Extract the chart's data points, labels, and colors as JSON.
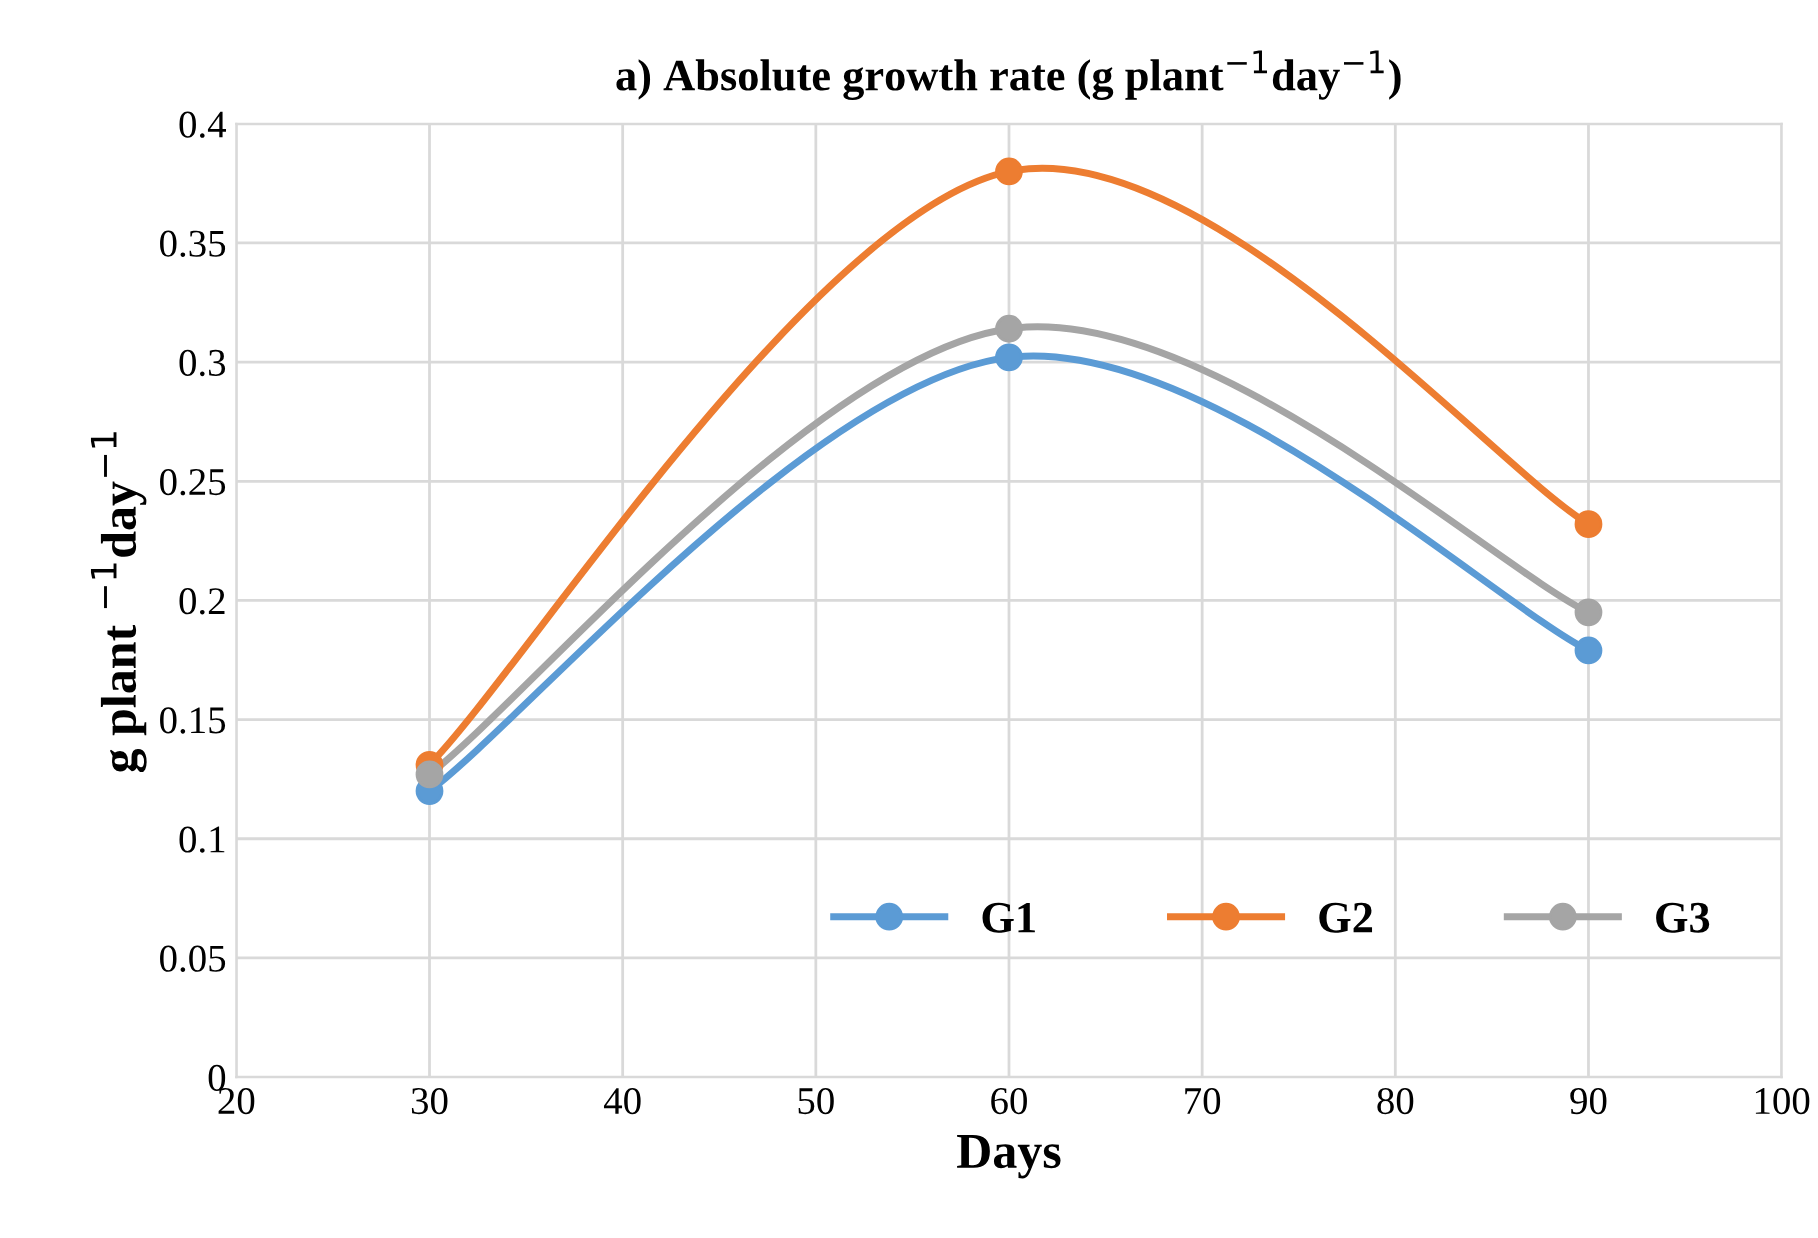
{
  "chart_data": {
    "type": "line",
    "title": "a) Absolute growth rate (g plant$^{−1}$day$^{−1}$)",
    "xlabel": "Days",
    "ylabel": "g plant $^{−1}$day$^{−1}$",
    "x": [
      30,
      60,
      90
    ],
    "series": [
      {
        "name": "G1",
        "color": "#5b9bd5",
        "values": [
          0.12,
          0.302,
          0.179
        ]
      },
      {
        "name": "G2",
        "color": "#ed7d31",
        "values": [
          0.131,
          0.38,
          0.232
        ]
      },
      {
        "name": "G3",
        "color": "#a5a5a5",
        "values": [
          0.127,
          0.314,
          0.195
        ]
      }
    ],
    "xlim": [
      20,
      100
    ],
    "xticks": [
      20,
      30,
      40,
      50,
      60,
      70,
      80,
      90,
      100
    ],
    "ylim": [
      0,
      0.4
    ],
    "yticks": [
      0,
      0.05,
      0.1,
      0.15,
      0.2,
      0.25,
      0.3,
      0.35,
      0.4
    ],
    "grid": true,
    "legend": "bottom right",
    "marker": "circle",
    "line_style": "solid"
  }
}
